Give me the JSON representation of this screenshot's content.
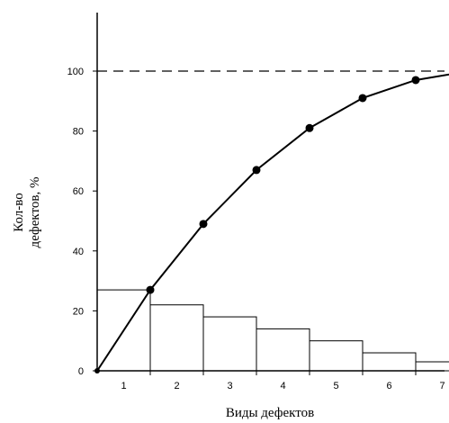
{
  "chart_data": {
    "type": "bar",
    "xlabel": "Виды дефектов",
    "ylabel_line1": "Кол-во",
    "ylabel_line2": "дефектов, %",
    "x_ticks": [
      "1",
      "2",
      "3",
      "4",
      "5",
      "6",
      "7"
    ],
    "y_ticks": [
      "0",
      "20",
      "40",
      "60",
      "80",
      "100"
    ],
    "bars": [
      {
        "category": "1",
        "value": 27
      },
      {
        "category": "2",
        "value": 22
      },
      {
        "category": "3",
        "value": 18
      },
      {
        "category": "4",
        "value": 14
      },
      {
        "category": "5",
        "value": 10
      },
      {
        "category": "6",
        "value": 6
      },
      {
        "category": "7",
        "value": 3
      }
    ],
    "cumulative_line": {
      "x": [
        0,
        1,
        2,
        3,
        4,
        5,
        6,
        7
      ],
      "y": [
        0,
        27,
        49,
        67,
        81,
        91,
        97,
        100
      ]
    },
    "reference_line": {
      "y": 100,
      "style": "dashed"
    },
    "ylim": [
      0,
      110
    ],
    "grid": false,
    "legend": "none",
    "colors": {
      "bars_fill": "#ffffff",
      "stroke": "#000000",
      "points": "#000000"
    }
  }
}
